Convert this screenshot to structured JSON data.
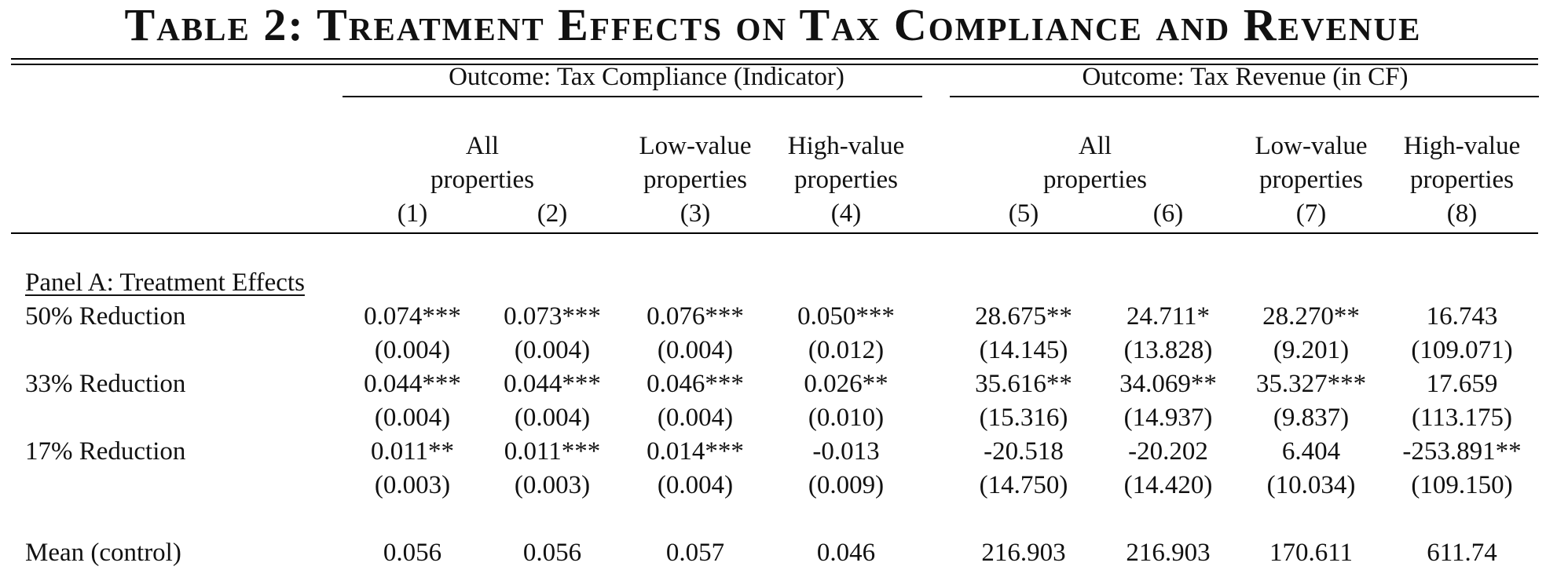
{
  "title": "Table 2:  Treatment Effects on Tax Compliance and Revenue",
  "groups": {
    "compliance": "Outcome: Tax Compliance (Indicator)",
    "revenue": "Outcome: Tax Revenue (in CF)"
  },
  "columns": {
    "all_top": "All",
    "all_bottom": "properties",
    "low_top": "Low-value",
    "low_bottom": "properties",
    "high_top": "High-value",
    "high_bottom": "properties",
    "numbers": [
      "(1)",
      "(2)",
      "(3)",
      "(4)",
      "(5)",
      "(6)",
      "(7)",
      "(8)"
    ]
  },
  "panel_a": "Panel A: Treatment Effects",
  "rows": [
    {
      "label": "50% Reduction",
      "coef": [
        "0.074***",
        "0.073***",
        "0.076***",
        "0.050***",
        "28.675**",
        "24.711*",
        "28.270**",
        "16.743"
      ],
      "se": [
        "(0.004)",
        "(0.004)",
        "(0.004)",
        "(0.012)",
        "(14.145)",
        "(13.828)",
        "(9.201)",
        "(109.071)"
      ]
    },
    {
      "label": "33% Reduction",
      "coef": [
        "0.044***",
        "0.044***",
        "0.046***",
        "0.026**",
        "35.616**",
        "34.069**",
        "35.327***",
        "17.659"
      ],
      "se": [
        "(0.004)",
        "(0.004)",
        "(0.004)",
        "(0.010)",
        "(15.316)",
        "(14.937)",
        "(9.837)",
        "(113.175)"
      ]
    },
    {
      "label": "17% Reduction",
      "coef": [
        "0.011**",
        "0.011***",
        "0.014***",
        "-0.013",
        "-20.518",
        "-20.202",
        "6.404",
        "-253.891**"
      ],
      "se": [
        "(0.003)",
        "(0.003)",
        "(0.004)",
        "(0.009)",
        "(14.750)",
        "(14.420)",
        "(10.034)",
        "(109.150)"
      ]
    }
  ],
  "mean": {
    "label": "Mean (control)",
    "values": [
      "0.056",
      "0.056",
      "0.057",
      "0.046",
      "216.903",
      "216.903",
      "170.611",
      "611.74"
    ]
  }
}
